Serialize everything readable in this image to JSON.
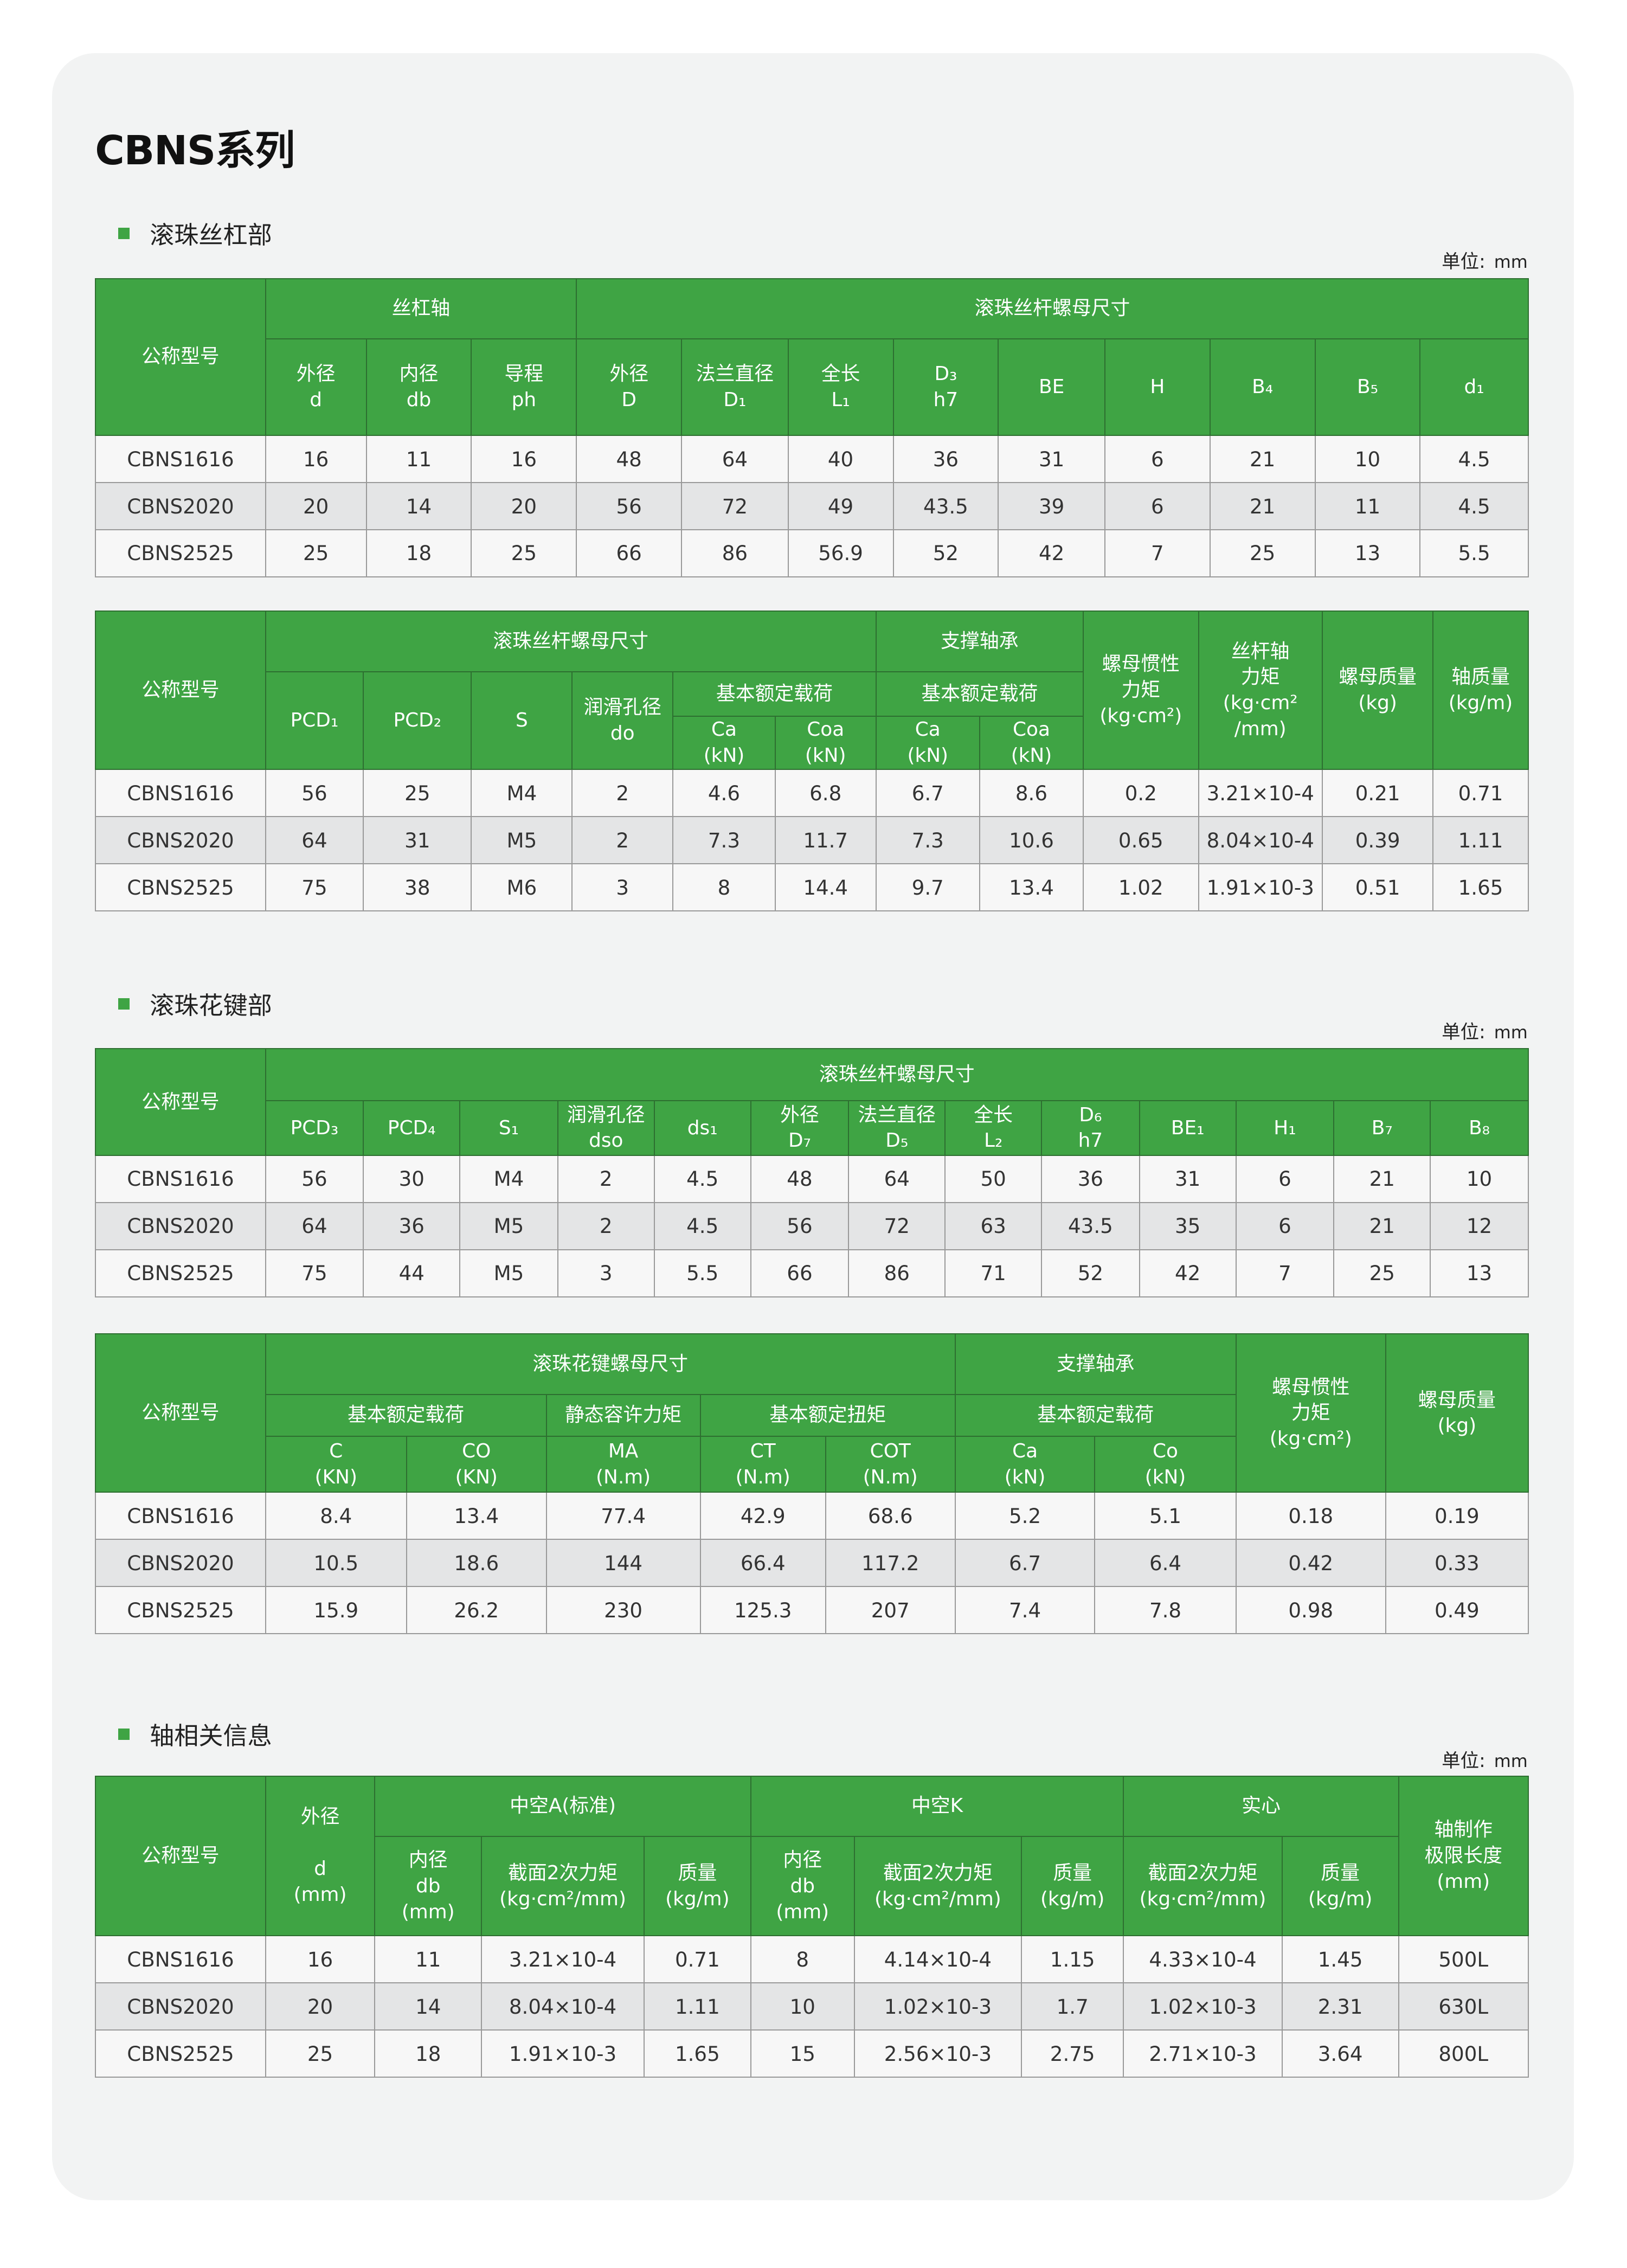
{
  "title": "CBNS系列",
  "unit_label": "单位:",
  "unit_value": "mm",
  "colors": {
    "header": "#3fa444",
    "card": "#f2f3f3",
    "alt_row": "#e4e5e6"
  },
  "sections": [
    {
      "label": "滚珠丝杠部"
    },
    {
      "label": "滚珠花键部"
    },
    {
      "label": "轴相关信息"
    }
  ],
  "tables": [
    {
      "header": [
        [
          {
            "t": "公称型号",
            "rs": 2
          },
          {
            "t": "丝杠轴",
            "cs": 3
          },
          {
            "t": "滚珠丝杆螺母尺寸",
            "cs": 9
          }
        ],
        [
          {
            "t": "外径\nd"
          },
          {
            "t": "内径\ndb"
          },
          {
            "t": "导程\nph"
          },
          {
            "t": "外径\nD"
          },
          {
            "t": "法兰直径\nD₁"
          },
          {
            "t": "全长\nL₁"
          },
          {
            "t": "D₃\nh7"
          },
          {
            "t": "BE"
          },
          {
            "t": "H"
          },
          {
            "t": "B₄"
          },
          {
            "t": "B₅"
          },
          {
            "t": "d₁"
          }
        ]
      ],
      "rows": [
        [
          "CBNS1616",
          "16",
          "11",
          "16",
          "48",
          "64",
          "40",
          "36",
          "31",
          "6",
          "21",
          "10",
          "4.5"
        ],
        [
          "CBNS2020",
          "20",
          "14",
          "20",
          "56",
          "72",
          "49",
          "43.5",
          "39",
          "6",
          "21",
          "11",
          "4.5"
        ],
        [
          "CBNS2525",
          "25",
          "18",
          "25",
          "66",
          "86",
          "56.9",
          "52",
          "42",
          "7",
          "25",
          "13",
          "5.5"
        ]
      ]
    },
    {
      "header": [
        [
          {
            "t": "公称型号",
            "rs": 3
          },
          {
            "t": "滚珠丝杆螺母尺寸",
            "cs": 6
          },
          {
            "t": "支撑轴承",
            "cs": 2
          },
          {
            "t": "螺母惯性\n力矩\n(kg·cm²)",
            "rs": 3
          },
          {
            "t": "丝杆轴\n力矩\n(kg·cm²\n/mm)",
            "rs": 3
          },
          {
            "t": "螺母质量\n(kg)",
            "rs": 3
          },
          {
            "t": "轴质量\n(kg/m)",
            "rs": 3
          }
        ],
        [
          {
            "t": "PCD₁",
            "rs": 2
          },
          {
            "t": "PCD₂",
            "rs": 2
          },
          {
            "t": "S",
            "rs": 2
          },
          {
            "t": "润滑孔径\ndo",
            "rs": 2
          },
          {
            "t": "基本额定载荷",
            "cs": 2
          },
          {
            "t": "基本额定载荷",
            "cs": 2
          }
        ],
        [
          {
            "t": "Ca\n(kN)"
          },
          {
            "t": "Coa\n(kN)"
          },
          {
            "t": "Ca\n(kN)"
          },
          {
            "t": "Coa\n(kN)"
          }
        ]
      ],
      "rows": [
        [
          "CBNS1616",
          "56",
          "25",
          "M4",
          "2",
          "4.6",
          "6.8",
          "6.7",
          "8.6",
          "0.2",
          "3.21×10-4",
          "0.21",
          "0.71"
        ],
        [
          "CBNS2020",
          "64",
          "31",
          "M5",
          "2",
          "7.3",
          "11.7",
          "7.3",
          "10.6",
          "0.65",
          "8.04×10-4",
          "0.39",
          "1.11"
        ],
        [
          "CBNS2525",
          "75",
          "38",
          "M6",
          "3",
          "8",
          "14.4",
          "9.7",
          "13.4",
          "1.02",
          "1.91×10-3",
          "0.51",
          "1.65"
        ]
      ]
    },
    {
      "header": [
        [
          {
            "t": "公称型号",
            "rs": 2
          },
          {
            "t": "滚珠丝杆螺母尺寸",
            "cs": 13
          }
        ],
        [
          {
            "t": "PCD₃"
          },
          {
            "t": "PCD₄"
          },
          {
            "t": "S₁"
          },
          {
            "t": "润滑孔径\ndso"
          },
          {
            "t": "ds₁"
          },
          {
            "t": "外径\nD₇"
          },
          {
            "t": "法兰直径\nD₅"
          },
          {
            "t": "全长\nL₂"
          },
          {
            "t": "D₆\nh7"
          },
          {
            "t": "BE₁"
          },
          {
            "t": "H₁"
          },
          {
            "t": "B₇"
          },
          {
            "t": "B₈"
          }
        ]
      ],
      "rows": [
        [
          "CBNS1616",
          "56",
          "30",
          "M4",
          "2",
          "4.5",
          "48",
          "64",
          "50",
          "36",
          "31",
          "6",
          "21",
          "10"
        ],
        [
          "CBNS2020",
          "64",
          "36",
          "M5",
          "2",
          "4.5",
          "56",
          "72",
          "63",
          "43.5",
          "35",
          "6",
          "21",
          "12"
        ],
        [
          "CBNS2525",
          "75",
          "44",
          "M5",
          "3",
          "5.5",
          "66",
          "86",
          "71",
          "52",
          "42",
          "7",
          "25",
          "13"
        ]
      ]
    },
    {
      "header": [
        [
          {
            "t": "公称型号",
            "rs": 3
          },
          {
            "t": "滚珠花键螺母尺寸",
            "cs": 5
          },
          {
            "t": "支撑轴承",
            "cs": 2
          },
          {
            "t": "螺母惯性\n力矩\n(kg·cm²)",
            "rs": 3
          },
          {
            "t": "螺母质量\n(kg)",
            "rs": 3
          }
        ],
        [
          {
            "t": "基本额定载荷",
            "cs": 2
          },
          {
            "t": "静态容许力矩"
          },
          {
            "t": "基本额定扭矩",
            "cs": 2
          },
          {
            "t": "基本额定载荷",
            "cs": 2
          }
        ],
        [
          {
            "t": "C\n(KN)"
          },
          {
            "t": "CO\n(KN)"
          },
          {
            "t": "MA\n(N.m)"
          },
          {
            "t": "CT\n(N.m)"
          },
          {
            "t": "COT\n(N.m)"
          },
          {
            "t": "Ca\n(kN)"
          },
          {
            "t": "Co\n(kN)"
          }
        ]
      ],
      "rows": [
        [
          "CBNS1616",
          "8.4",
          "13.4",
          "77.4",
          "42.9",
          "68.6",
          "5.2",
          "5.1",
          "0.18",
          "0.19"
        ],
        [
          "CBNS2020",
          "10.5",
          "18.6",
          "144",
          "66.4",
          "117.2",
          "6.7",
          "6.4",
          "0.42",
          "0.33"
        ],
        [
          "CBNS2525",
          "15.9",
          "26.2",
          "230",
          "125.3",
          "207",
          "7.4",
          "7.8",
          "0.98",
          "0.49"
        ]
      ]
    },
    {
      "header": [
        [
          {
            "t": "公称型号",
            "rs": 2
          },
          {
            "t": "外径\n\nd\n(mm)",
            "rs": 2
          },
          {
            "t": "中空A(标准)",
            "cs": 3
          },
          {
            "t": "中空K",
            "cs": 3
          },
          {
            "t": "实心",
            "cs": 2
          },
          {
            "t": "轴制作\n极限长度\n(mm)",
            "rs": 2
          }
        ],
        [
          {
            "t": "内径\ndb\n(mm)"
          },
          {
            "t": "截面2次力矩\n(kg·cm²/mm)"
          },
          {
            "t": "质量\n(kg/m)"
          },
          {
            "t": "内径\ndb\n(mm)"
          },
          {
            "t": "截面2次力矩\n(kg·cm²/mm)"
          },
          {
            "t": "质量\n(kg/m)"
          },
          {
            "t": "截面2次力矩\n(kg·cm²/mm)"
          },
          {
            "t": "质量\n(kg/m)"
          }
        ]
      ],
      "rows": [
        [
          "CBNS1616",
          "16",
          "11",
          "3.21×10-4",
          "0.71",
          "8",
          "4.14×10-4",
          "1.15",
          "4.33×10-4",
          "1.45",
          "500L"
        ],
        [
          "CBNS2020",
          "20",
          "14",
          "8.04×10-4",
          "1.11",
          "10",
          "1.02×10-3",
          "1.7",
          "1.02×10-3",
          "2.31",
          "630L"
        ],
        [
          "CBNS2525",
          "25",
          "18",
          "1.91×10-3",
          "1.65",
          "15",
          "2.56×10-3",
          "2.75",
          "2.71×10-3",
          "3.64",
          "800L"
        ]
      ]
    }
  ]
}
